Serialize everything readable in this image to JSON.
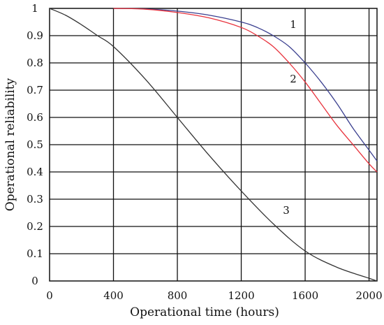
{
  "chart_data": {
    "type": "line",
    "title": "",
    "xlabel": "Operational time (hours)",
    "ylabel": "Operational reliability",
    "xlim": [
      0,
      2050
    ],
    "ylim": [
      0,
      1
    ],
    "x_ticks": [
      "0",
      "400",
      "800",
      "1200",
      "1600",
      "2000"
    ],
    "y_ticks": [
      "0",
      "0.1",
      "0.2",
      "0.3",
      "0.4",
      "0.5",
      "0.6",
      "0.7",
      "0.8",
      "0.9",
      "1"
    ],
    "grid": true,
    "legend": "none",
    "series": [
      {
        "label": "1",
        "color": "#3a3f8f",
        "x": [
          400,
          600,
          800,
          1000,
          1200,
          1300,
          1400,
          1500,
          1600,
          1700,
          1800,
          1900,
          2000,
          2050
        ],
        "y": [
          1.0,
          0.998,
          0.99,
          0.975,
          0.95,
          0.93,
          0.9,
          0.86,
          0.8,
          0.73,
          0.65,
          0.56,
          0.48,
          0.44
        ]
      },
      {
        "label": "2",
        "color": "#e8323c",
        "x": [
          400,
          600,
          800,
          1000,
          1200,
          1300,
          1400,
          1500,
          1600,
          1700,
          1800,
          1900,
          2000,
          2050
        ],
        "y": [
          1.0,
          0.997,
          0.985,
          0.965,
          0.93,
          0.9,
          0.86,
          0.8,
          0.73,
          0.65,
          0.57,
          0.5,
          0.43,
          0.4
        ]
      },
      {
        "label": "3",
        "color": "#333333",
        "x": [
          0,
          100,
          200,
          300,
          400,
          600,
          800,
          1000,
          1200,
          1400,
          1600,
          1800,
          2000,
          2050
        ],
        "y": [
          1.0,
          0.975,
          0.94,
          0.9,
          0.86,
          0.74,
          0.6,
          0.46,
          0.33,
          0.21,
          0.11,
          0.05,
          0.01,
          0.0
        ]
      }
    ]
  }
}
